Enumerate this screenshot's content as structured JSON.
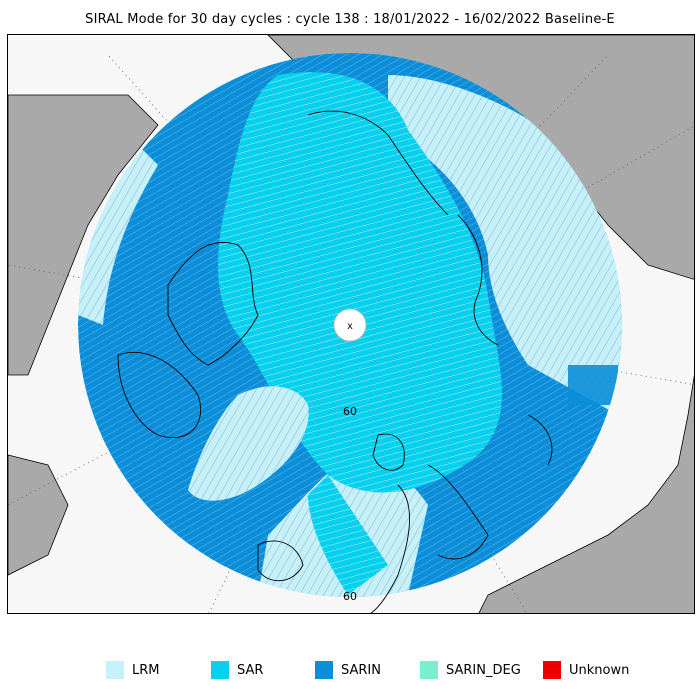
{
  "title": "SIRAL Mode for 30 day cycles : cycle 138 : 18/01/2022 - 16/02/2022 Baseline-E",
  "map": {
    "latitude_labels": [
      "60",
      "60"
    ],
    "pole_marker": "x",
    "colors": {
      "ocean": "#f7f7f7",
      "land": "#a9a9a9",
      "lrm": "#c4f1fb",
      "sar": "#05d1ef",
      "sarin": "#0a8ed9",
      "sarin_deg": "#77f0d2",
      "unknown": "#ee0000"
    }
  },
  "legend": [
    {
      "label": "LRM",
      "color": "#c4f1fb"
    },
    {
      "label": "SAR",
      "color": "#05d1ef"
    },
    {
      "label": "SARIN",
      "color": "#0a8ed9"
    },
    {
      "label": "SARIN_DEG",
      "color": "#77f0d2"
    },
    {
      "label": "Unknown",
      "color": "#ee0000"
    }
  ]
}
